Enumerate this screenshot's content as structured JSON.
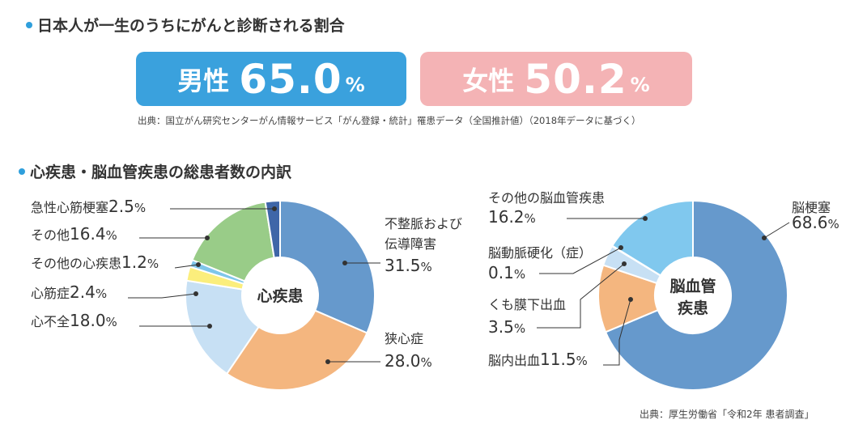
{
  "heading1": "日本人が一生のうちにがんと診断される割合",
  "male": {
    "label": "男性",
    "value": "65.0",
    "unit": "%"
  },
  "female": {
    "label": "女性",
    "value": "50.2",
    "unit": "%"
  },
  "source1": "出典：国立がん研究センターがん情報サービス「がん登録・統計」罹患データ（全国推計値）（2018年データに基づく）",
  "heading2": "心疾患・脳血管疾患の総患者数の内訳",
  "source2": "出典：厚生労働省「令和2年 患者調査」",
  "colors": {
    "accent": "#2f9fdc",
    "male": "#3aa1dd",
    "female": "#f4b3b5"
  },
  "chart_data": [
    {
      "type": "pie",
      "center_label": "心疾患",
      "unit": "%",
      "slices": [
        {
          "name": "不整脈および伝導障害",
          "value": 31.5,
          "color": "#6699cc"
        },
        {
          "name": "狭心症",
          "value": 28.0,
          "color": "#f4b67f"
        },
        {
          "name": "心不全",
          "value": 18.0,
          "color": "#c7e0f4"
        },
        {
          "name": "心筋症",
          "value": 2.4,
          "color": "#fbee7c"
        },
        {
          "name": "その他の心疾患",
          "value": 1.2,
          "color": "#7fc6ea"
        },
        {
          "name": "その他",
          "value": 16.4,
          "color": "#99cc88"
        },
        {
          "name": "急性心筋梗塞",
          "value": 2.5,
          "color": "#3f66a8"
        }
      ]
    },
    {
      "type": "pie",
      "center_label": "脳血管疾患",
      "unit": "%",
      "slices": [
        {
          "name": "脳梗塞",
          "value": 68.6,
          "color": "#6699cc"
        },
        {
          "name": "脳内出血",
          "value": 11.5,
          "color": "#f4b67f"
        },
        {
          "name": "くも膜下出血",
          "value": 3.5,
          "color": "#c7e0f4"
        },
        {
          "name": "脳動脈硬化（症）",
          "value": 0.1,
          "color": "#e63e4e"
        },
        {
          "name": "その他の脳血管疾患",
          "value": 16.2,
          "color": "#80c8ee"
        }
      ]
    }
  ]
}
